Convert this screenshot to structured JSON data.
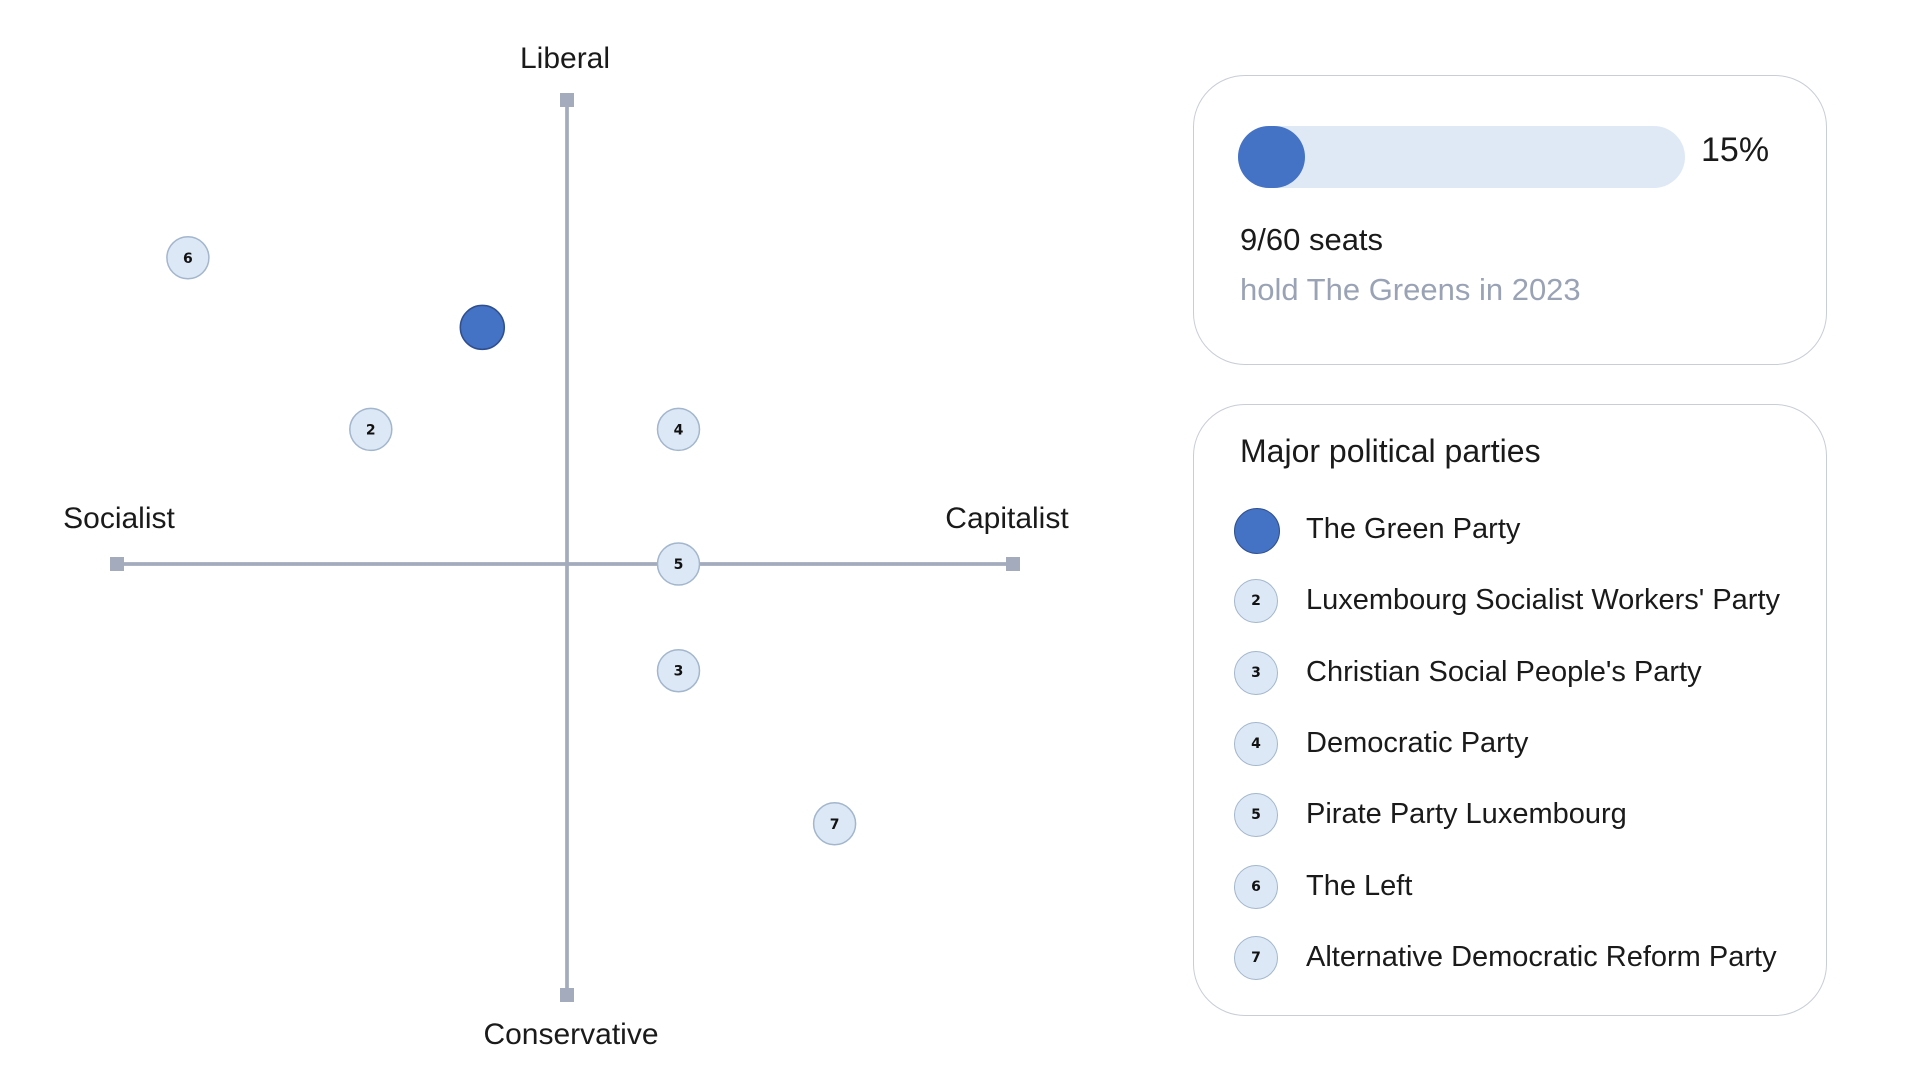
{
  "chart_data": {
    "type": "scatter",
    "axes": {
      "x_negative_label": "Socialist",
      "x_positive_label": "Capitalist",
      "y_positive_label": "Liberal",
      "y_negative_label": "Conservative"
    },
    "xlim": [
      -10,
      10
    ],
    "ylim": [
      -10,
      10
    ],
    "grid": false,
    "highlight_color": "#4472c4",
    "other_color": "#dce8f5",
    "points": [
      {
        "id": 1,
        "name": "The Green Party",
        "marker": "",
        "highlight": true,
        "x": -1.9,
        "y": 5.1
      },
      {
        "id": 2,
        "name": "Luxembourg Socialist Workers' Party",
        "marker": "2",
        "highlight": false,
        "x": -4.4,
        "y": 2.9
      },
      {
        "id": 3,
        "name": "Christian Social People's Party",
        "marker": "3",
        "highlight": false,
        "x": 2.5,
        "y": -2.3
      },
      {
        "id": 4,
        "name": "Democratic Party",
        "marker": "4",
        "highlight": false,
        "x": 2.5,
        "y": 2.9
      },
      {
        "id": 5,
        "name": "Pirate Party Luxembourg",
        "marker": "5",
        "highlight": false,
        "x": 2.5,
        "y": 0.0
      },
      {
        "id": 6,
        "name": "The Left",
        "marker": "6",
        "highlight": false,
        "x": -8.5,
        "y": 6.6
      },
      {
        "id": 7,
        "name": "Alternative Democratic Reform Party",
        "marker": "7",
        "highlight": false,
        "x": 6.0,
        "y": -5.6
      }
    ]
  },
  "share_card": {
    "progress_fraction": 0.15,
    "percent_label": "15%",
    "seats_label": "9/60 seats",
    "caption": "hold The Greens in 2023"
  },
  "legend": {
    "title": "Major political parties",
    "items": [
      {
        "marker": "",
        "highlight": true,
        "label": "The Green Party"
      },
      {
        "marker": "2",
        "highlight": false,
        "label": "Luxembourg Socialist Workers' Party"
      },
      {
        "marker": "3",
        "highlight": false,
        "label": "Christian Social People's Party"
      },
      {
        "marker": "4",
        "highlight": false,
        "label": "Democratic Party"
      },
      {
        "marker": "5",
        "highlight": false,
        "label": "Pirate Party Luxembourg"
      },
      {
        "marker": "6",
        "highlight": false,
        "label": "The Left"
      },
      {
        "marker": "7",
        "highlight": false,
        "label": "Alternative Democratic Reform Party"
      }
    ]
  }
}
